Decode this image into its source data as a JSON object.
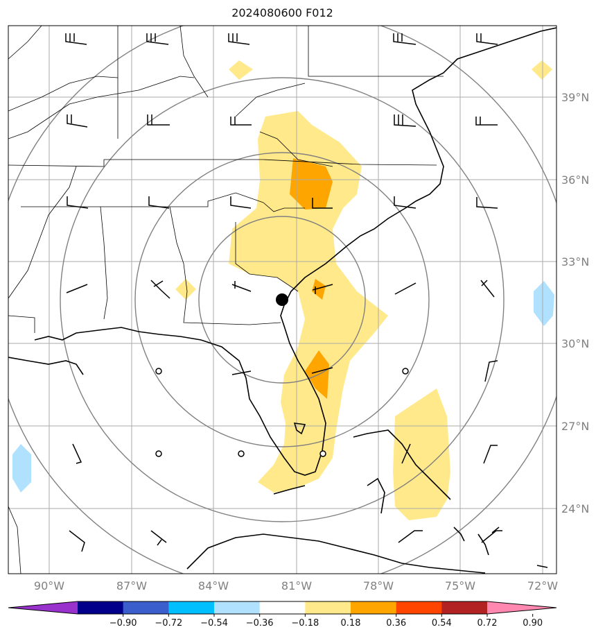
{
  "title": "2024080600 F012",
  "lon_labels": [
    "90°W",
    "87°W",
    "84°W",
    "81°W",
    "78°W",
    "75°W",
    "72°W"
  ],
  "lat_labels": [
    "39°N",
    "36°N",
    "33°N",
    "30°N",
    "27°N",
    "24°N"
  ],
  "colorbar": {
    "ticks": [
      "−0.90",
      "−0.72",
      "−0.54",
      "−0.36",
      "−0.18",
      "0.18",
      "0.36",
      "0.54",
      "0.72",
      "0.90"
    ],
    "colors": [
      "#9932cc",
      "#00008b",
      "#3a5fcd",
      "#00bfff",
      "#b0e2ff",
      "#ffffff",
      "#ffe98a",
      "#ffa500",
      "#ff4500",
      "#b22222",
      "#ff88b0"
    ]
  },
  "marker": {
    "lon": -81.1,
    "lat": 31.6
  }
}
